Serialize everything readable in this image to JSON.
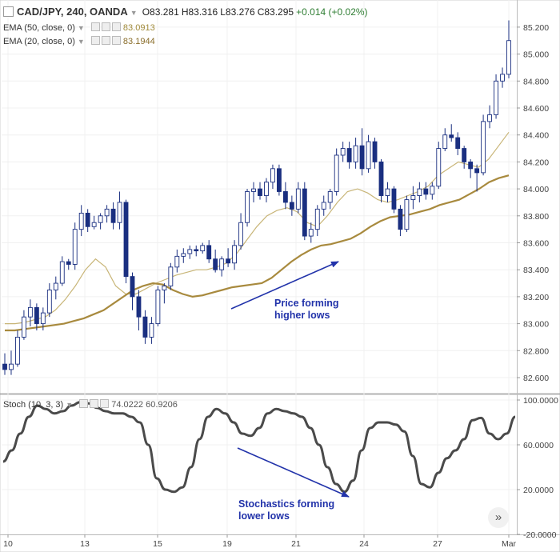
{
  "header": {
    "symbol_label": "CAD/JPY, 240, OANDA",
    "open": "O83.281",
    "high": "H83.316",
    "low": "L83.276",
    "close": "C83.295",
    "change": "+0.014 (+0.02%)"
  },
  "indicators": {
    "ema50": {
      "label": "EMA (50, close, 0)",
      "value": "83.0913",
      "color": "#c8b577"
    },
    "ema20": {
      "label": "EMA (20, close, 0)",
      "value": "83.1944",
      "color": "#a88a3e"
    },
    "stoch": {
      "label": "Stoch (10, 3, 3)",
      "value1": "74.0222",
      "value2": "60.9206"
    }
  },
  "annotations": {
    "price": [
      "Price forming",
      "higher lows"
    ],
    "stoch": [
      "Stochastics forming",
      "lower lows"
    ]
  },
  "colors": {
    "up_candle": "#ffffff",
    "down_candle": "#1a2f80",
    "candle_outline": "#1a2f80",
    "stoch_line": "#4a4a4a",
    "annotation": "#2233aa"
  },
  "chart_data": [
    {
      "type": "candlestick",
      "ylim": [
        82.5,
        85.3
      ],
      "y_ticks": [
        "85.200",
        "85.000",
        "84.800",
        "84.600",
        "84.400",
        "84.200",
        "84.000",
        "83.800",
        "83.600",
        "83.400",
        "83.200",
        "83.000",
        "82.800",
        "82.600"
      ],
      "x_ticks": [
        "10",
        "13",
        "15",
        "19",
        "21",
        "24",
        "27",
        "Mar"
      ],
      "candles": [
        [
          82.7,
          82.78,
          82.62,
          82.66
        ],
        [
          82.66,
          82.8,
          82.62,
          82.7
        ],
        [
          82.7,
          82.95,
          82.68,
          82.9
        ],
        [
          82.9,
          83.1,
          82.88,
          83.05
        ],
        [
          83.05,
          83.18,
          82.98,
          83.12
        ],
        [
          83.12,
          83.15,
          82.95,
          83.0
        ],
        [
          83.0,
          83.12,
          82.95,
          83.08
        ],
        [
          83.08,
          83.3,
          83.05,
          83.25
        ],
        [
          83.25,
          83.35,
          83.18,
          83.3
        ],
        [
          83.3,
          83.5,
          83.28,
          83.46
        ],
        [
          83.46,
          83.48,
          83.4,
          83.44
        ],
        [
          83.44,
          83.75,
          83.4,
          83.7
        ],
        [
          83.7,
          83.88,
          83.65,
          83.82
        ],
        [
          83.82,
          83.85,
          83.68,
          83.72
        ],
        [
          83.72,
          83.8,
          83.7,
          83.75
        ],
        [
          83.75,
          83.82,
          83.7,
          83.8
        ],
        [
          83.8,
          83.88,
          83.75,
          83.85
        ],
        [
          83.85,
          83.9,
          83.7,
          83.75
        ],
        [
          83.75,
          83.98,
          83.7,
          83.9
        ],
        [
          83.9,
          83.92,
          83.3,
          83.35
        ],
        [
          83.35,
          83.38,
          83.1,
          83.2
        ],
        [
          83.2,
          83.25,
          82.95,
          83.05
        ],
        [
          83.05,
          83.1,
          82.85,
          82.9
        ],
        [
          82.9,
          83.05,
          82.85,
          83.0
        ],
        [
          83.0,
          83.28,
          82.98,
          83.25
        ],
        [
          83.25,
          83.3,
          83.15,
          83.28
        ],
        [
          83.28,
          83.45,
          83.25,
          83.42
        ],
        [
          83.42,
          83.55,
          83.38,
          83.5
        ],
        [
          83.5,
          83.56,
          83.45,
          83.52
        ],
        [
          83.52,
          83.58,
          83.48,
          83.55
        ],
        [
          83.55,
          83.58,
          83.5,
          83.54
        ],
        [
          83.54,
          83.6,
          83.52,
          83.58
        ],
        [
          83.58,
          83.62,
          83.45,
          83.48
        ],
        [
          83.48,
          83.55,
          83.38,
          83.4
        ],
        [
          83.4,
          83.5,
          83.35,
          83.48
        ],
        [
          83.48,
          83.56,
          83.42,
          83.45
        ],
        [
          83.45,
          83.62,
          83.4,
          83.58
        ],
        [
          83.58,
          83.82,
          83.55,
          83.75
        ],
        [
          83.75,
          84.0,
          83.72,
          83.98
        ],
        [
          83.98,
          84.05,
          83.9,
          84.0
        ],
        [
          84.0,
          84.05,
          83.92,
          83.95
        ],
        [
          83.95,
          84.08,
          83.9,
          84.05
        ],
        [
          84.05,
          84.18,
          84.0,
          84.15
        ],
        [
          84.15,
          84.18,
          83.95,
          83.98
        ],
        [
          83.98,
          84.05,
          83.85,
          83.9
        ],
        [
          83.9,
          83.95,
          83.8,
          83.85
        ],
        [
          83.85,
          84.05,
          83.82,
          84.0
        ],
        [
          84.0,
          84.05,
          83.62,
          83.65
        ],
        [
          83.65,
          83.75,
          83.6,
          83.7
        ],
        [
          83.7,
          83.88,
          83.65,
          83.85
        ],
        [
          83.85,
          83.95,
          83.8,
          83.9
        ],
        [
          83.9,
          84.0,
          83.85,
          83.98
        ],
        [
          83.98,
          84.3,
          83.95,
          84.25
        ],
        [
          84.25,
          84.35,
          84.2,
          84.3
        ],
        [
          84.3,
          84.35,
          84.15,
          84.2
        ],
        [
          84.2,
          84.38,
          84.15,
          84.32
        ],
        [
          84.32,
          84.45,
          84.1,
          84.15
        ],
        [
          84.15,
          84.4,
          84.12,
          84.35
        ],
        [
          84.35,
          84.38,
          84.15,
          84.2
        ],
        [
          84.2,
          84.22,
          83.9,
          83.95
        ],
        [
          83.95,
          84.05,
          83.9,
          84.0
        ],
        [
          84.0,
          84.02,
          83.82,
          83.85
        ],
        [
          83.85,
          83.88,
          83.65,
          83.7
        ],
        [
          83.7,
          83.95,
          83.68,
          83.92
        ],
        [
          83.92,
          84.02,
          83.85,
          83.95
        ],
        [
          83.95,
          84.05,
          83.9,
          84.0
        ],
        [
          84.0,
          84.05,
          83.92,
          83.96
        ],
        [
          83.96,
          84.05,
          83.92,
          84.02
        ],
        [
          84.02,
          84.35,
          84.0,
          84.3
        ],
        [
          84.3,
          84.45,
          84.28,
          84.4
        ],
        [
          84.4,
          84.48,
          84.35,
          84.38
        ],
        [
          84.38,
          84.42,
          84.25,
          84.3
        ],
        [
          84.3,
          84.32,
          84.15,
          84.2
        ],
        [
          84.2,
          84.22,
          84.08,
          84.15
        ],
        [
          84.15,
          84.18,
          83.98,
          84.12
        ],
        [
          84.12,
          84.55,
          84.1,
          84.5
        ],
        [
          84.5,
          84.62,
          84.45,
          84.55
        ],
        [
          84.55,
          84.85,
          84.52,
          84.8
        ],
        [
          84.8,
          84.9,
          84.75,
          84.85
        ],
        [
          84.85,
          85.25,
          84.82,
          85.1
        ]
      ],
      "ema50": [
        82.95,
        82.95,
        82.96,
        82.97,
        82.98,
        82.99,
        83.0,
        83.02,
        83.04,
        83.07,
        83.1,
        83.15,
        83.2,
        83.25,
        83.28,
        83.3,
        83.29,
        83.25,
        83.22,
        83.2,
        83.21,
        83.23,
        83.25,
        83.27,
        83.28,
        83.29,
        83.3,
        83.34,
        83.4,
        83.46,
        83.51,
        83.55,
        83.58,
        83.59,
        83.61,
        83.63,
        83.67,
        83.72,
        83.76,
        83.79,
        83.8,
        83.81,
        83.83,
        83.85,
        83.88,
        83.9,
        83.92,
        83.96,
        84.0,
        84.05,
        84.08,
        84.1
      ],
      "ema20": [
        83.0,
        83.0,
        83.01,
        83.03,
        83.05,
        83.1,
        83.18,
        83.28,
        83.4,
        83.48,
        83.42,
        83.28,
        83.22,
        83.22,
        83.26,
        83.3,
        83.33,
        83.36,
        83.38,
        83.4,
        83.4,
        83.42,
        83.45,
        83.52,
        83.62,
        83.72,
        83.8,
        83.84,
        83.86,
        83.83,
        83.75,
        83.72,
        83.8,
        83.9,
        83.98,
        84.0,
        83.97,
        83.92,
        83.9,
        83.92,
        83.95,
        83.98,
        84.02,
        84.1,
        84.15,
        84.2,
        84.18,
        84.16,
        84.22,
        84.32,
        84.42
      ],
      "ema_x_range": [
        0,
        79
      ]
    },
    {
      "type": "line",
      "title": "Stoch (10, 3, 3)",
      "ylim": [
        -25,
        100
      ],
      "y_ticks": [
        "100.0000",
        "60.0000",
        "20.0000",
        "-20.0000"
      ],
      "series": [
        {
          "values": [
            45,
            55,
            70,
            85,
            95,
            92,
            88,
            90,
            95,
            98,
            97,
            93,
            90,
            88,
            88,
            85,
            80,
            60,
            30,
            20,
            18,
            22,
            40,
            65,
            85,
            92,
            88,
            80,
            70,
            68,
            75,
            88,
            92,
            90,
            88,
            85,
            75,
            60,
            40,
            25,
            18,
            28,
            55,
            75,
            80,
            80,
            78,
            72,
            50,
            25,
            22,
            35,
            48,
            55,
            65,
            82,
            84,
            70,
            65,
            70,
            85
          ]
        }
      ]
    }
  ]
}
